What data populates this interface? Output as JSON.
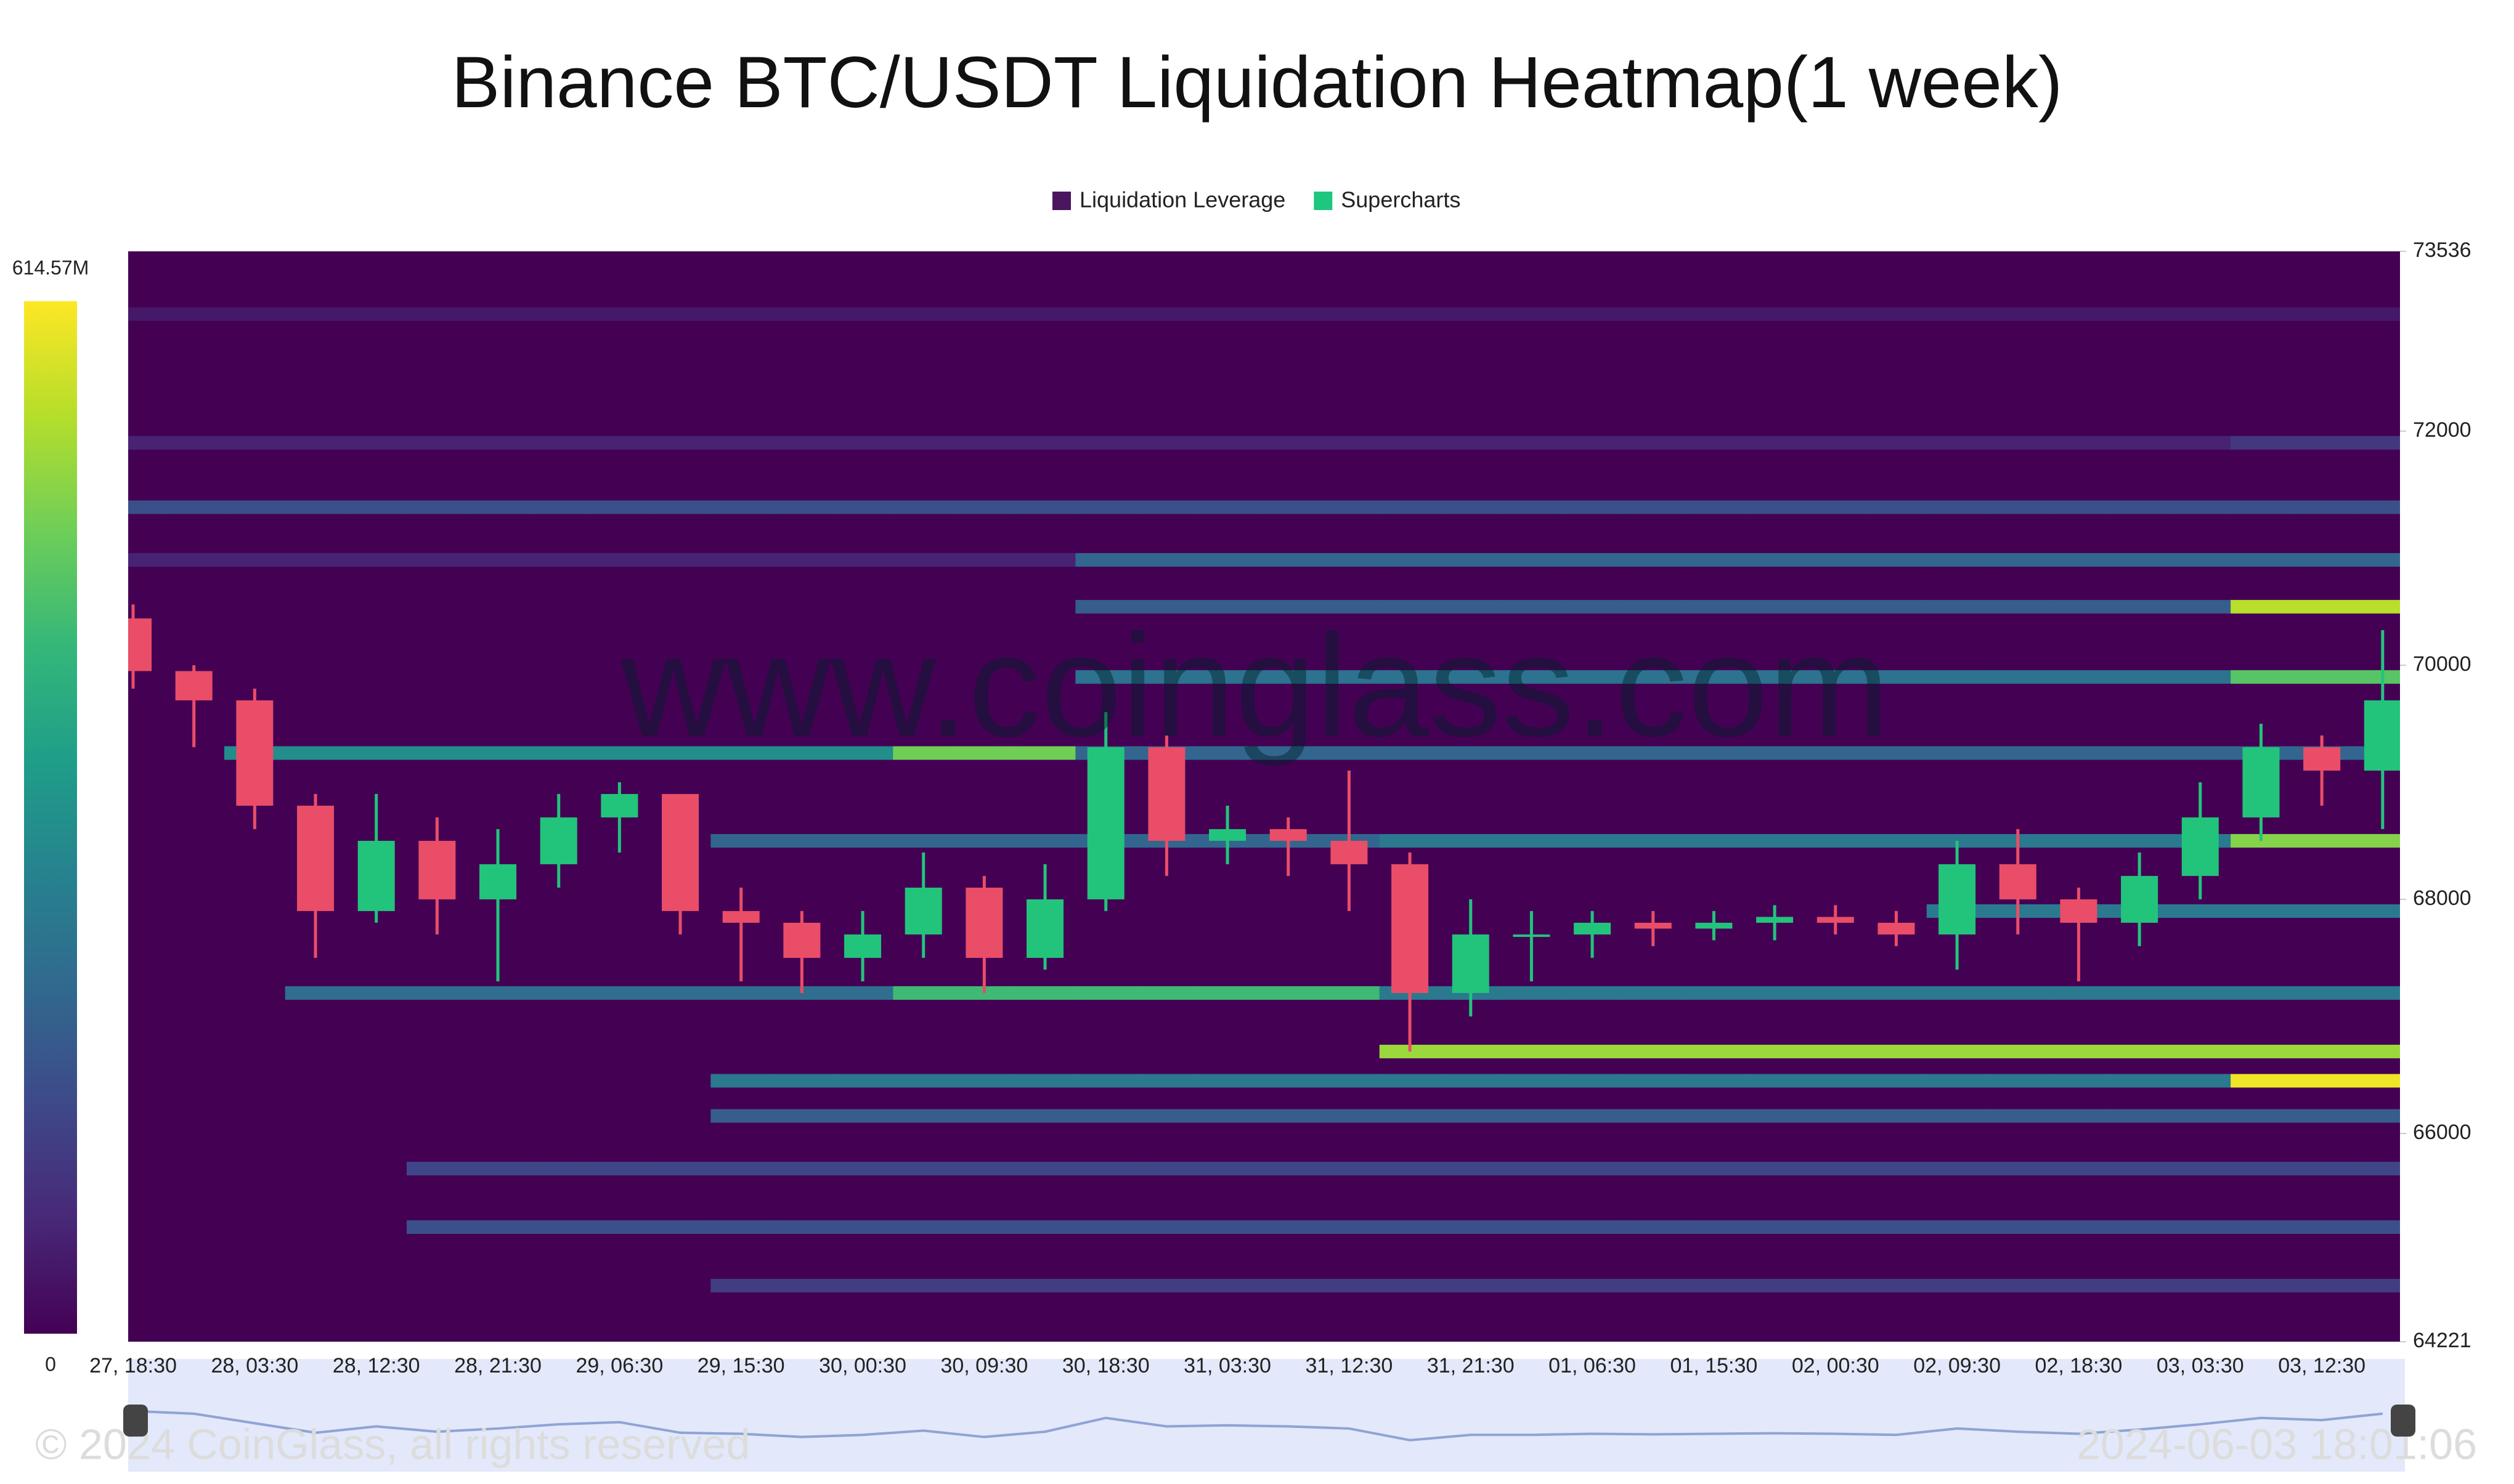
{
  "chart_data": {
    "type": "heatmap-candlestick",
    "title": "Binance BTC/USDT Liquidation Heatmap(1 week)",
    "legend": [
      {
        "name": "Liquidation Leverage",
        "color": "#4b1560"
      },
      {
        "name": "Supercharts",
        "color": "#1fc77e"
      }
    ],
    "watermark": "www.coinglass.com",
    "copyright": "© 2024 CoinGlass, all rights reserved",
    "timestamp": "2024-06-03 18:01:06",
    "categories": [
      "27, 18:30",
      null,
      "28, 03:30",
      null,
      "28, 12:30",
      null,
      "28, 21:30",
      null,
      "29, 06:30",
      null,
      "29, 15:30",
      null,
      "30, 00:30",
      null,
      "30, 09:30",
      null,
      "30, 18:30",
      null,
      "31, 03:30",
      null,
      "31, 12:30",
      null,
      "31, 21:30",
      null,
      "01, 06:30",
      null,
      "01, 15:30",
      null,
      "02, 00:30",
      null,
      "02, 09:30",
      null,
      "02, 18:30",
      null,
      "03, 03:30",
      null,
      "03, 12:30",
      null
    ],
    "ylim": [
      64221,
      73536
    ],
    "yticks": [
      64221,
      66000,
      68000,
      70000,
      72000,
      73536
    ],
    "clim": [
      0,
      614.57
    ],
    "cticks": [
      0,
      {
        "value": 614.57,
        "label": "614.57M"
      }
    ],
    "candle_colors": {
      "up": "#22c47b",
      "down": "#ea4d67"
    },
    "candles": {
      "open": [
        70400,
        69950,
        69700,
        68800,
        67900,
        68500,
        68000,
        68300,
        68700,
        68900,
        67900,
        67800,
        67500,
        67700,
        68100,
        67500,
        68000,
        69300,
        68500,
        68600,
        68500,
        68300,
        67200,
        67700,
        67700,
        67800,
        67750,
        67800,
        67850,
        67800,
        67700,
        68300,
        68000,
        67800,
        68200,
        68700,
        69300,
        69100
      ],
      "high": [
        70520,
        70000,
        69800,
        68900,
        68900,
        68700,
        68600,
        68900,
        69000,
        68900,
        68100,
        67900,
        67900,
        68400,
        68200,
        68300,
        69600,
        69400,
        68800,
        68700,
        69100,
        68400,
        68000,
        67900,
        67900,
        67900,
        67900,
        67950,
        67950,
        67900,
        68500,
        68600,
        68100,
        68400,
        69000,
        69500,
        69400,
        70300
      ],
      "low": [
        69800,
        69300,
        68600,
        67500,
        67800,
        67700,
        67300,
        68100,
        68400,
        67700,
        67300,
        67200,
        67300,
        67500,
        67200,
        67400,
        67900,
        68200,
        68300,
        68200,
        67900,
        66700,
        67000,
        67300,
        67500,
        67600,
        67650,
        67650,
        67700,
        67600,
        67400,
        67700,
        67300,
        67600,
        68000,
        68500,
        68800,
        68600
      ],
      "close": [
        69950,
        69700,
        68800,
        67900,
        68500,
        68000,
        68300,
        68700,
        68900,
        67900,
        67800,
        67500,
        67700,
        68100,
        67500,
        68000,
        69300,
        68500,
        68600,
        68500,
        68300,
        67200,
        67700,
        67700,
        67800,
        67750,
        67800,
        67850,
        67800,
        67700,
        68300,
        68000,
        67800,
        68200,
        68700,
        69300,
        69100,
        69700
      ]
    },
    "heatmap": [
      {
        "price": 73000,
        "values": [
          40,
          40,
          40,
          40,
          40,
          40,
          40,
          40,
          40,
          40,
          40,
          40,
          40,
          40,
          40,
          40,
          40,
          40,
          40,
          40,
          40,
          40,
          40,
          40,
          40,
          40,
          40,
          40,
          40,
          40,
          40,
          40,
          40,
          40,
          40,
          40,
          40,
          40
        ]
      },
      {
        "price": 71900,
        "values": [
          60,
          60,
          60,
          60,
          60,
          60,
          60,
          60,
          60,
          60,
          60,
          60,
          60,
          60,
          60,
          60,
          60,
          60,
          60,
          60,
          60,
          60,
          60,
          60,
          60,
          60,
          60,
          60,
          60,
          60,
          60,
          60,
          60,
          60,
          60,
          100,
          100,
          100
        ]
      },
      {
        "price": 71350,
        "values": [
          150,
          150,
          150,
          150,
          150,
          150,
          150,
          150,
          150,
          150,
          150,
          150,
          150,
          150,
          150,
          150,
          150,
          150,
          150,
          150,
          150,
          150,
          150,
          150,
          150,
          150,
          150,
          150,
          150,
          150,
          150,
          150,
          150,
          150,
          150,
          150,
          150,
          150
        ]
      },
      {
        "price": 70900,
        "values": [
          60,
          60,
          60,
          60,
          60,
          60,
          60,
          60,
          60,
          60,
          60,
          60,
          60,
          60,
          60,
          60,
          200,
          200,
          200,
          200,
          200,
          200,
          200,
          200,
          200,
          200,
          200,
          200,
          200,
          200,
          200,
          200,
          200,
          200,
          200,
          200,
          200,
          200
        ]
      },
      {
        "price": 70500,
        "values": [
          null,
          null,
          null,
          null,
          null,
          null,
          null,
          null,
          null,
          null,
          null,
          null,
          null,
          null,
          null,
          null,
          180,
          180,
          180,
          180,
          180,
          180,
          180,
          180,
          180,
          180,
          180,
          180,
          180,
          180,
          180,
          180,
          180,
          180,
          180,
          550,
          550,
          550
        ]
      },
      {
        "price": 69900,
        "values": [
          null,
          null,
          null,
          null,
          null,
          null,
          null,
          null,
          null,
          null,
          null,
          null,
          null,
          null,
          null,
          null,
          230,
          230,
          230,
          230,
          230,
          230,
          230,
          230,
          230,
          230,
          230,
          230,
          230,
          230,
          230,
          230,
          230,
          230,
          230,
          450,
          450,
          450
        ]
      },
      {
        "price": 69250,
        "values": [
          null,
          null,
          300,
          300,
          300,
          300,
          300,
          300,
          300,
          300,
          300,
          300,
          300,
          480,
          480,
          480,
          200,
          200,
          200,
          200,
          200,
          200,
          200,
          200,
          200,
          200,
          200,
          200,
          200,
          200,
          200,
          200,
          200,
          200,
          200,
          200,
          200,
          200
        ]
      },
      {
        "price": 68500,
        "values": [
          null,
          null,
          null,
          null,
          null,
          null,
          null,
          null,
          null,
          null,
          200,
          200,
          200,
          200,
          200,
          200,
          200,
          200,
          200,
          200,
          200,
          250,
          250,
          250,
          250,
          250,
          250,
          250,
          250,
          250,
          250,
          250,
          250,
          250,
          250,
          500,
          500,
          500
        ]
      },
      {
        "price": 67900,
        "values": [
          null,
          null,
          null,
          null,
          null,
          null,
          null,
          null,
          null,
          null,
          null,
          null,
          null,
          null,
          null,
          null,
          null,
          null,
          null,
          null,
          null,
          null,
          null,
          null,
          null,
          null,
          null,
          null,
          null,
          null,
          250,
          250,
          250,
          250,
          250,
          250,
          250,
          250
        ]
      },
      {
        "price": 67200,
        "values": [
          null,
          null,
          null,
          220,
          220,
          220,
          220,
          220,
          220,
          220,
          220,
          220,
          220,
          420,
          420,
          420,
          420,
          420,
          420,
          420,
          420,
          250,
          250,
          250,
          250,
          250,
          250,
          250,
          250,
          250,
          250,
          250,
          250,
          250,
          250,
          250,
          250,
          250
        ]
      },
      {
        "price": 66700,
        "values": [
          null,
          null,
          null,
          null,
          null,
          null,
          null,
          null,
          null,
          null,
          null,
          null,
          null,
          null,
          null,
          null,
          null,
          null,
          null,
          null,
          null,
          520,
          520,
          520,
          520,
          520,
          520,
          520,
          520,
          520,
          520,
          520,
          520,
          520,
          520,
          520,
          520,
          520
        ]
      },
      {
        "price": 66450,
        "values": [
          null,
          null,
          null,
          null,
          null,
          null,
          null,
          null,
          null,
          null,
          250,
          250,
          250,
          250,
          250,
          250,
          250,
          250,
          250,
          250,
          250,
          250,
          250,
          250,
          250,
          250,
          250,
          250,
          250,
          250,
          250,
          250,
          250,
          250,
          250,
          600,
          600,
          600
        ]
      },
      {
        "price": 66150,
        "values": [
          null,
          null,
          null,
          null,
          null,
          null,
          null,
          null,
          null,
          null,
          180,
          180,
          180,
          180,
          180,
          180,
          180,
          180,
          180,
          180,
          180,
          180,
          180,
          180,
          180,
          180,
          180,
          180,
          180,
          180,
          180,
          180,
          180,
          180,
          180,
          180,
          180,
          180
        ]
      },
      {
        "price": 65700,
        "values": [
          null,
          null,
          null,
          null,
          null,
          130,
          130,
          130,
          130,
          130,
          130,
          130,
          130,
          130,
          130,
          130,
          130,
          130,
          130,
          130,
          130,
          130,
          130,
          130,
          130,
          130,
          130,
          130,
          130,
          130,
          130,
          130,
          130,
          130,
          130,
          130,
          130,
          130
        ]
      },
      {
        "price": 65200,
        "values": [
          null,
          null,
          null,
          null,
          null,
          150,
          150,
          150,
          150,
          150,
          150,
          150,
          150,
          150,
          150,
          150,
          150,
          150,
          150,
          150,
          150,
          150,
          150,
          150,
          150,
          150,
          150,
          150,
          150,
          150,
          150,
          150,
          150,
          150,
          150,
          150,
          150,
          150
        ]
      },
      {
        "price": 64700,
        "values": [
          null,
          null,
          null,
          null,
          null,
          null,
          null,
          null,
          null,
          null,
          110,
          110,
          110,
          110,
          110,
          110,
          110,
          110,
          110,
          110,
          110,
          110,
          110,
          110,
          110,
          110,
          110,
          110,
          110,
          110,
          110,
          110,
          110,
          110,
          110,
          110,
          110,
          110
        ]
      }
    ]
  }
}
